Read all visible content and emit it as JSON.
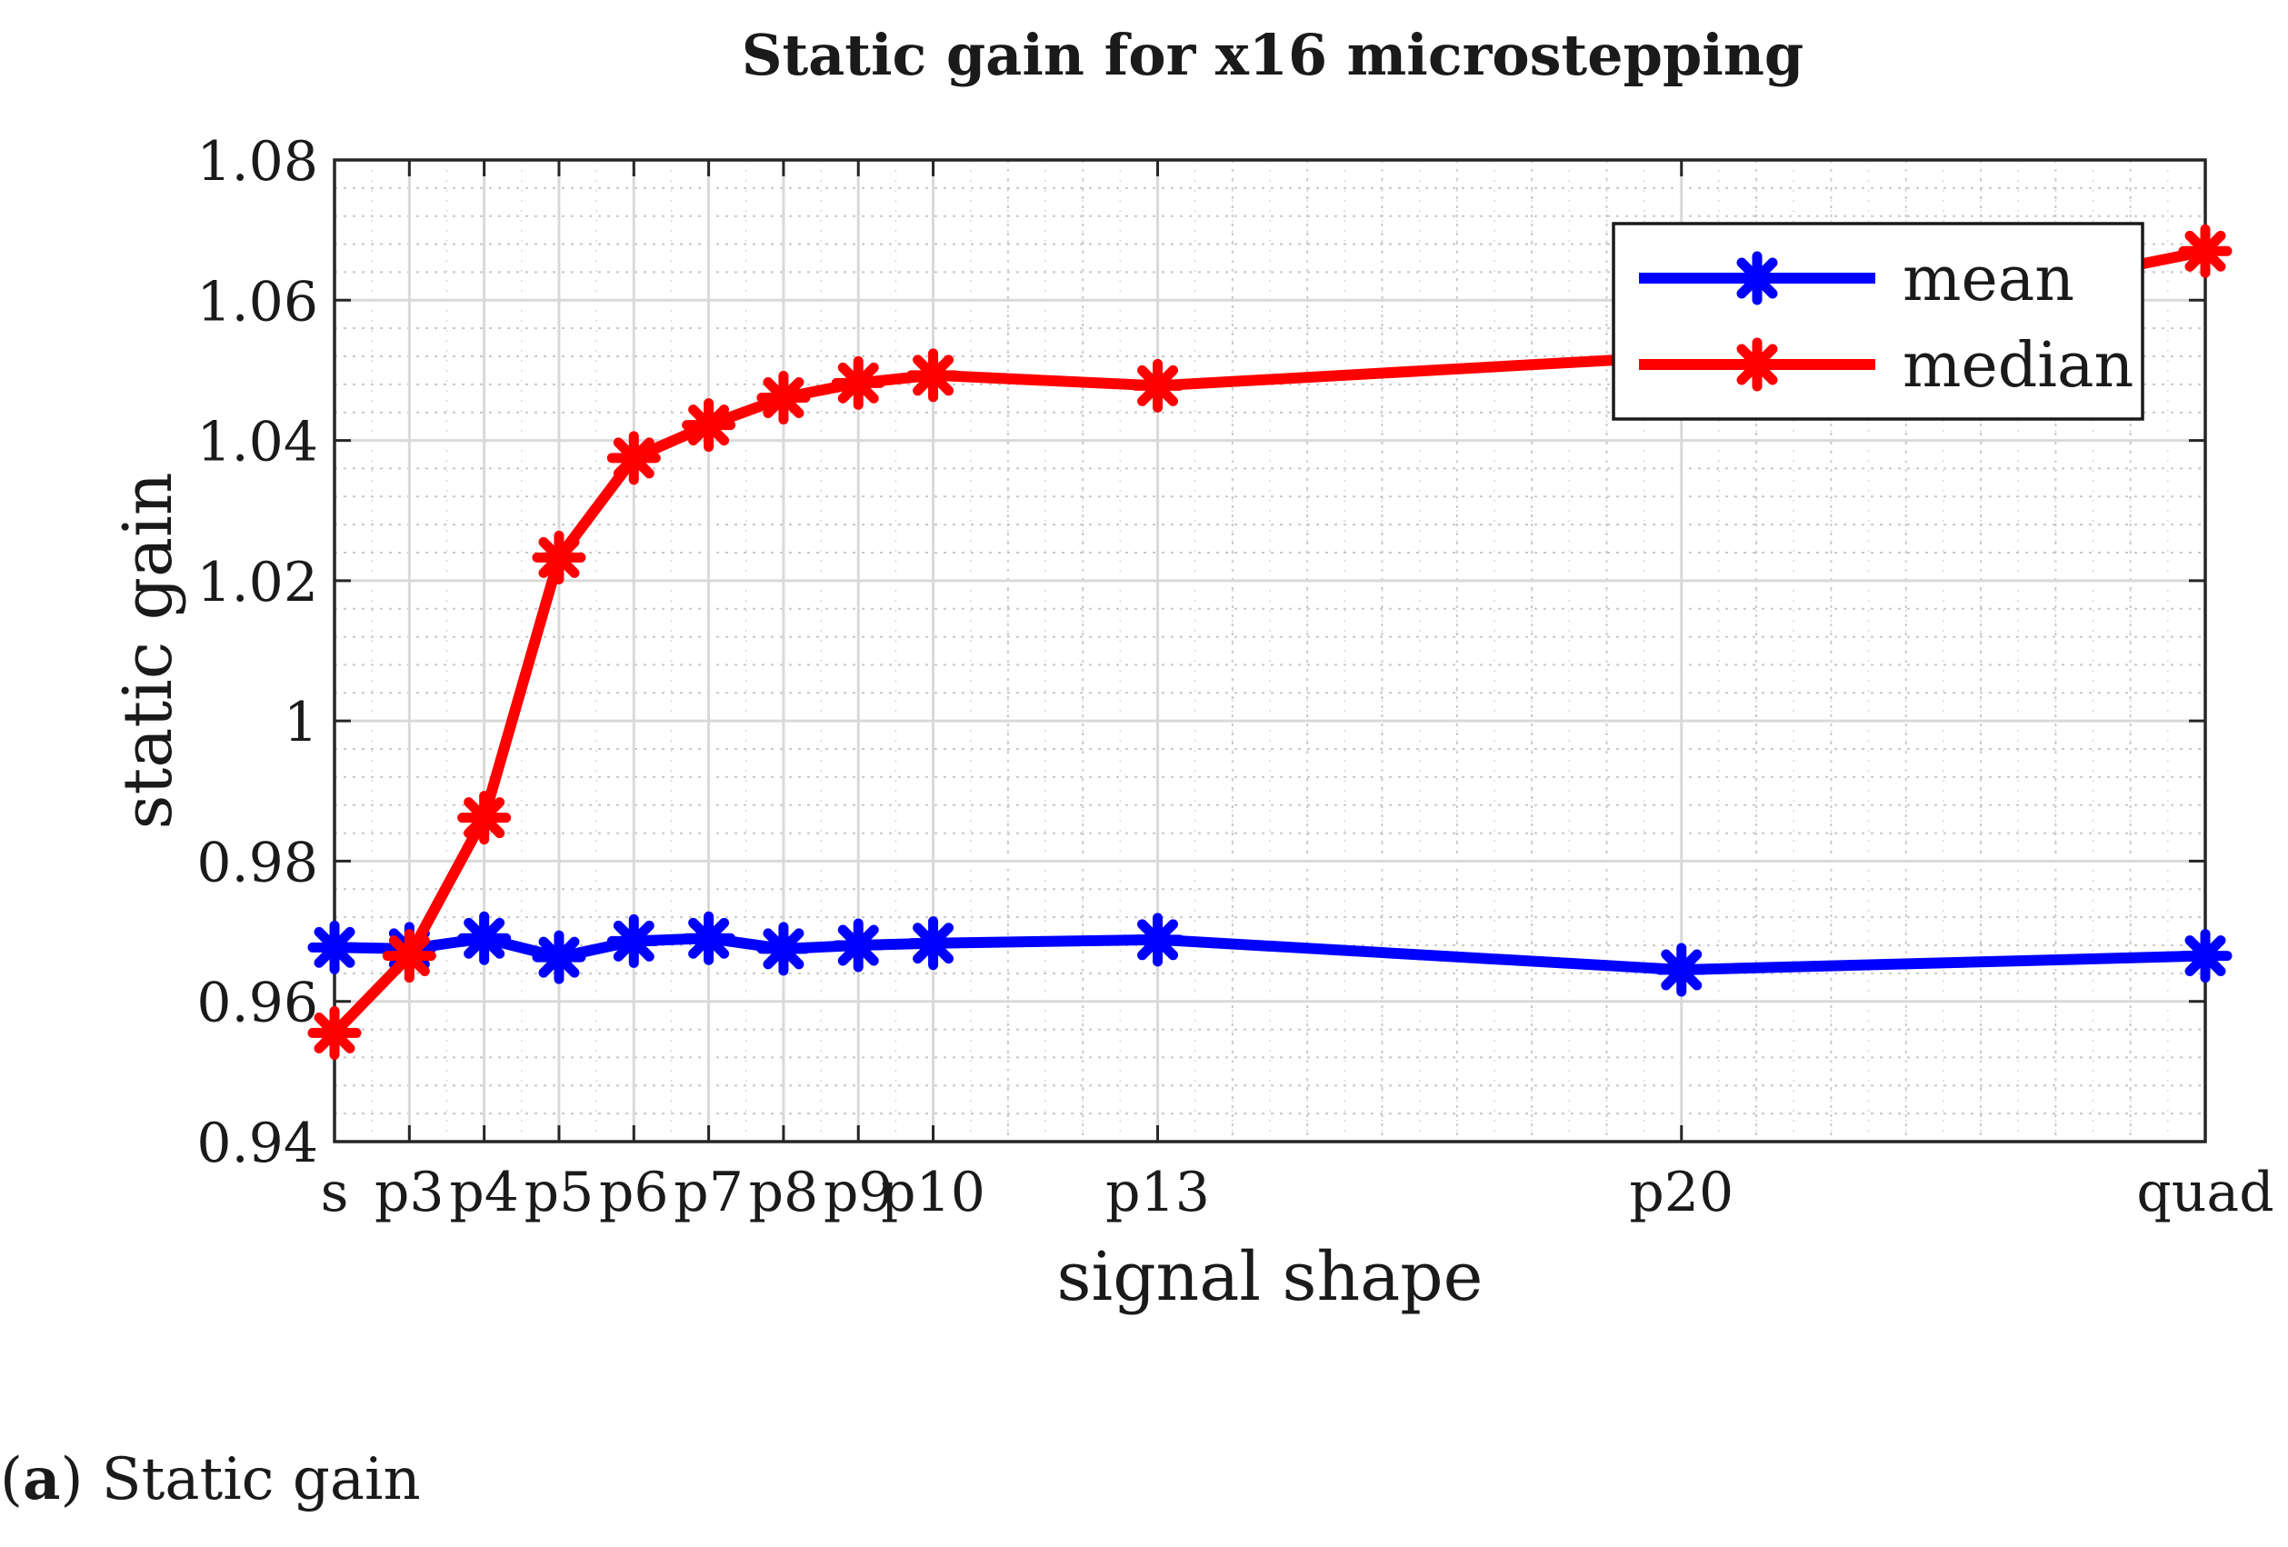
{
  "chart_data": {
    "type": "line",
    "title": "Static gain for x16 microstepping",
    "xlabel": "signal shape",
    "ylabel": "static gain",
    "categories": [
      "s",
      "p3",
      "p4",
      "p5",
      "p6",
      "p7",
      "p8",
      "p9",
      "p10",
      "p13",
      "p20",
      "quad"
    ],
    "x": [
      2,
      3,
      4,
      5,
      6,
      7,
      8,
      9,
      10,
      13,
      20,
      27
    ],
    "ylim": [
      0.94,
      1.08
    ],
    "yticks": [
      "0.94",
      "0.96",
      "0.98",
      "1",
      "1.02",
      "1.04",
      "1.06",
      "1.08"
    ],
    "grid": true,
    "minor_grid": true,
    "legend_position": "top-right",
    "series": [
      {
        "name": "mean",
        "color": "#0000ff",
        "marker": "asterisk",
        "values": [
          0.9677,
          0.9675,
          0.969,
          0.9663,
          0.9686,
          0.969,
          0.9675,
          0.968,
          0.9683,
          0.9688,
          0.9645,
          0.9665
        ]
      },
      {
        "name": "median",
        "color": "#ff0000",
        "marker": "asterisk",
        "values": [
          0.9555,
          0.9665,
          0.9862,
          1.0233,
          1.0375,
          1.0422,
          1.0461,
          1.0482,
          1.0493,
          1.0478,
          1.052,
          1.067
        ]
      }
    ]
  },
  "caption": {
    "label": "a",
    "text": "Static gain"
  }
}
